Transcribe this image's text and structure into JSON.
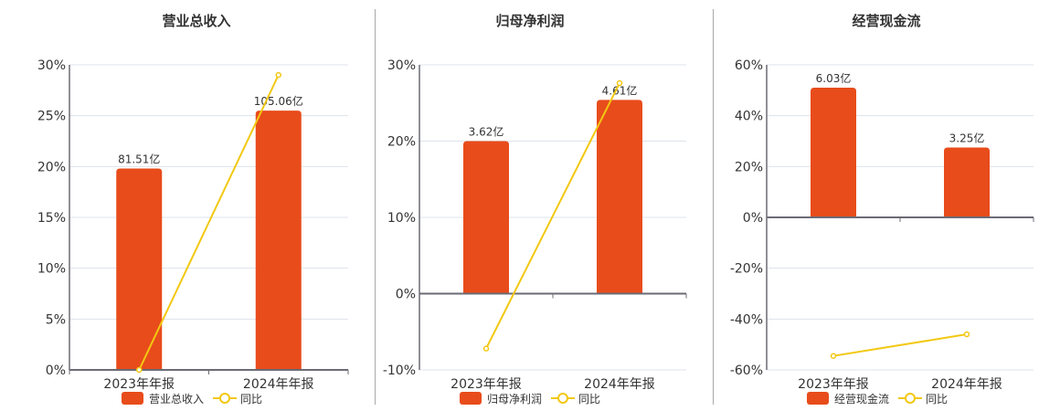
{
  "colors": {
    "bar": "#E84C1B",
    "line": "#F2C811",
    "grid": "#dde3ec",
    "axis": "#6b6b75"
  },
  "chart_data": [
    {
      "type": "bar+line",
      "title": "营业总收入",
      "categories": [
        "2023年年报",
        "2024年年报"
      ],
      "series": [
        {
          "name": "营业总收入",
          "type": "bar",
          "values": [
            19.8,
            25.5
          ],
          "labels": [
            "81.51亿",
            "105.06亿"
          ]
        },
        {
          "name": "同比",
          "type": "line",
          "values": [
            0.0,
            29.0
          ]
        }
      ],
      "ylim": [
        0,
        30
      ],
      "yticks": [
        0,
        5,
        10,
        15,
        20,
        25,
        30
      ],
      "ytick_labels": [
        "0%",
        "5%",
        "10%",
        "15%",
        "20%",
        "25%",
        "30%"
      ],
      "legend": [
        "营业总收入",
        "同比"
      ],
      "legend_position": "bottom",
      "grid": true
    },
    {
      "type": "bar+line",
      "title": "归母净利润",
      "categories": [
        "2023年年报",
        "2024年年报"
      ],
      "series": [
        {
          "name": "归母净利润",
          "type": "bar",
          "values": [
            20.0,
            25.4
          ],
          "labels": [
            "3.62亿",
            "4.61亿"
          ]
        },
        {
          "name": "同比",
          "type": "line",
          "values": [
            -7.2,
            27.6
          ]
        }
      ],
      "ylim": [
        -10,
        30
      ],
      "yticks": [
        -10,
        0,
        10,
        20,
        30
      ],
      "ytick_labels": [
        "-10%",
        "0%",
        "10%",
        "20%",
        "30%"
      ],
      "legend": [
        "归母净利润",
        "同比"
      ],
      "legend_position": "bottom",
      "grid": true
    },
    {
      "type": "bar+line",
      "title": "经营现金流",
      "categories": [
        "2023年年报",
        "2024年年报"
      ],
      "series": [
        {
          "name": "经营现金流",
          "type": "bar",
          "values": [
            51.0,
            27.5
          ],
          "labels": [
            "6.03亿",
            "3.25亿"
          ]
        },
        {
          "name": "同比",
          "type": "line",
          "values": [
            -54.5,
            -46.0
          ]
        }
      ],
      "ylim": [
        -60,
        60
      ],
      "yticks": [
        -60,
        -40,
        -20,
        0,
        20,
        40,
        60
      ],
      "ytick_labels": [
        "-60%",
        "-40%",
        "-20%",
        "0%",
        "20%",
        "40%",
        "60%"
      ],
      "legend": [
        "经营现金流",
        "同比"
      ],
      "legend_position": "bottom",
      "grid": true
    }
  ],
  "panels": [
    {
      "title": "营业总收入",
      "legend_bar": "营业总收入",
      "legend_line": "同比"
    },
    {
      "title": "归母净利润",
      "legend_bar": "归母净利润",
      "legend_line": "同比"
    },
    {
      "title": "经营现金流",
      "legend_bar": "经营现金流",
      "legend_line": "同比"
    }
  ]
}
